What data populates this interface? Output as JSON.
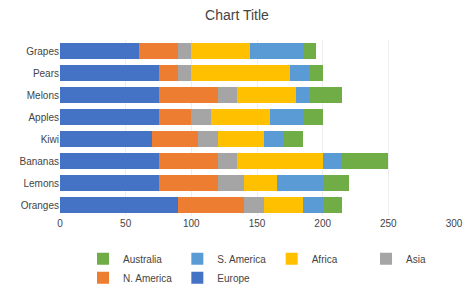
{
  "chart_data": {
    "type": "bar",
    "orientation": "horizontal",
    "stacked": true,
    "title": "Chart Title",
    "categories": [
      "Grapes",
      "Pears",
      "Melons",
      "Apples",
      "Kiwi",
      "Bananas",
      "Lemons",
      "Oranges"
    ],
    "series": [
      {
        "name": "Europe",
        "color": "#4472c4",
        "values": [
          60,
          75,
          75,
          75,
          70,
          75,
          75,
          90
        ]
      },
      {
        "name": "N. America",
        "color": "#ed7d31",
        "values": [
          30,
          15,
          45,
          25,
          35,
          45,
          45,
          50
        ]
      },
      {
        "name": "Asia",
        "color": "#a5a5a5",
        "values": [
          10,
          10,
          15,
          15,
          15,
          15,
          20,
          15
        ]
      },
      {
        "name": "Africa",
        "color": "#ffc000",
        "values": [
          45,
          75,
          45,
          45,
          35,
          65,
          25,
          30
        ]
      },
      {
        "name": "S. America",
        "color": "#5b9bd5",
        "values": [
          40,
          15,
          10,
          25,
          15,
          15,
          35,
          15
        ]
      },
      {
        "name": "Australia",
        "color": "#70ad47",
        "values": [
          10,
          10,
          25,
          15,
          15,
          35,
          20,
          15
        ]
      }
    ],
    "xlim": [
      0,
      300
    ],
    "xticks": [
      0,
      50,
      100,
      150,
      200,
      250,
      300
    ],
    "grid": true,
    "legend": "bottom"
  }
}
